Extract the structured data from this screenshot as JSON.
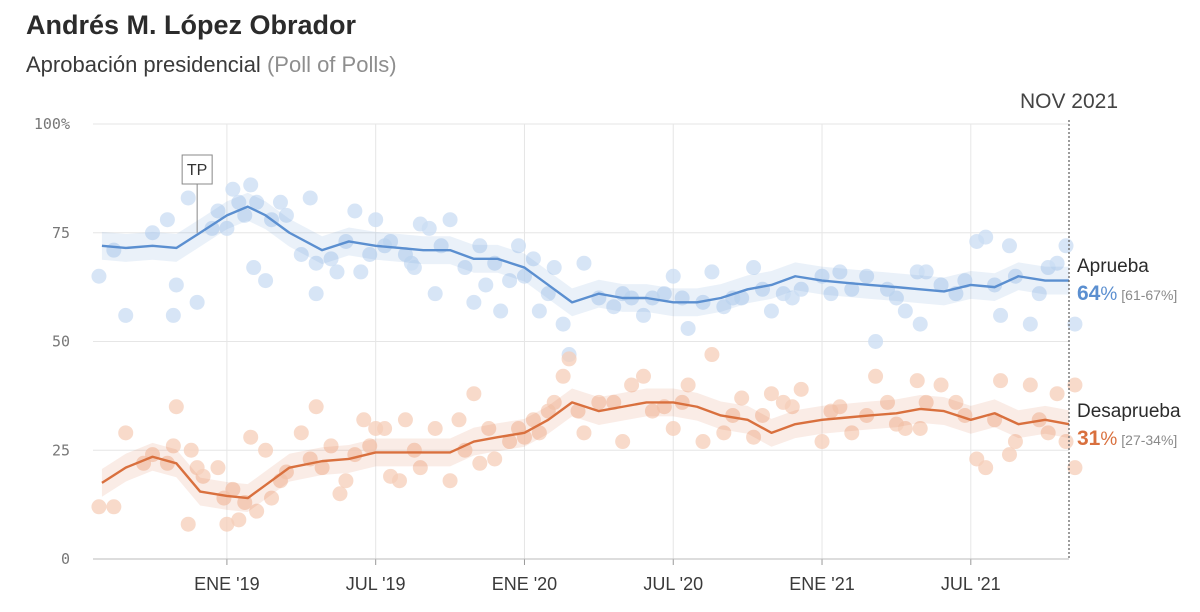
{
  "header": {
    "title": "Andrés M. López Obrador",
    "subtitle": "Aprobación presidencial",
    "subtitle_note": "(Poll of Polls)"
  },
  "colors": {
    "approve": "#5b8fd0",
    "approve_dots": "#c9dcf3",
    "disapprove": "#d9703e",
    "disapprove_dots": "#f5cdb8",
    "grid": "#e6e6e6"
  },
  "chart_data": {
    "type": "line",
    "y_ticks": [
      {
        "value": 100,
        "label": "100%"
      },
      {
        "value": 75,
        "label": "75"
      },
      {
        "value": 50,
        "label": "50"
      },
      {
        "value": 25,
        "label": "25"
      },
      {
        "value": 0,
        "label": "0"
      }
    ],
    "x_ticks": [
      {
        "value": 2019.0,
        "label": "ENE '19"
      },
      {
        "value": 2019.5,
        "label": "JUL '19"
      },
      {
        "value": 2020.0,
        "label": "ENE '20"
      },
      {
        "value": 2020.5,
        "label": "JUL '20"
      },
      {
        "value": 2021.0,
        "label": "ENE '21"
      },
      {
        "value": 2021.5,
        "label": "JUL '21"
      }
    ],
    "xlim": [
      2018.55,
      2021.83
    ],
    "ylim": [
      0,
      100
    ],
    "date_marker": {
      "value": 2021.83,
      "label": "NOV 2021"
    },
    "annotation": {
      "label": "TP",
      "x": 2018.9,
      "y": 75
    },
    "series": [
      {
        "name": "Aprueba",
        "value_label": "64",
        "pct_sign": "%",
        "range_label": "[61-67%]",
        "trend": [
          [
            2018.58,
            72
          ],
          [
            2018.66,
            71.5
          ],
          [
            2018.75,
            72
          ],
          [
            2018.83,
            71.5
          ],
          [
            2018.91,
            75
          ],
          [
            2019.0,
            79
          ],
          [
            2019.07,
            81
          ],
          [
            2019.13,
            79
          ],
          [
            2019.21,
            75
          ],
          [
            2019.32,
            71
          ],
          [
            2019.41,
            73
          ],
          [
            2019.5,
            72
          ],
          [
            2019.58,
            71.5
          ],
          [
            2019.66,
            71
          ],
          [
            2019.75,
            71
          ],
          [
            2019.83,
            69
          ],
          [
            2019.91,
            69
          ],
          [
            2020.0,
            67
          ],
          [
            2020.08,
            63
          ],
          [
            2020.16,
            59
          ],
          [
            2020.25,
            61
          ],
          [
            2020.33,
            60
          ],
          [
            2020.41,
            60
          ],
          [
            2020.5,
            59
          ],
          [
            2020.58,
            59
          ],
          [
            2020.66,
            60
          ],
          [
            2020.75,
            62
          ],
          [
            2020.83,
            63
          ],
          [
            2020.91,
            65
          ],
          [
            2021.0,
            64
          ],
          [
            2021.08,
            63.5
          ],
          [
            2021.16,
            63
          ],
          [
            2021.25,
            62.5
          ],
          [
            2021.33,
            62
          ],
          [
            2021.41,
            61.5
          ],
          [
            2021.5,
            63
          ],
          [
            2021.58,
            62.5
          ],
          [
            2021.66,
            65
          ],
          [
            2021.75,
            64
          ],
          [
            2021.83,
            64
          ]
        ],
        "points": [
          [
            2018.57,
            65
          ],
          [
            2018.62,
            71
          ],
          [
            2018.66,
            56
          ],
          [
            2018.75,
            75
          ],
          [
            2018.8,
            78
          ],
          [
            2018.82,
            56
          ],
          [
            2018.83,
            63
          ],
          [
            2018.87,
            83
          ],
          [
            2018.9,
            59
          ],
          [
            2018.95,
            76
          ],
          [
            2018.97,
            80
          ],
          [
            2019.0,
            76
          ],
          [
            2019.02,
            85
          ],
          [
            2019.04,
            82
          ],
          [
            2019.06,
            79
          ],
          [
            2019.08,
            86
          ],
          [
            2019.09,
            67
          ],
          [
            2019.1,
            82
          ],
          [
            2019.13,
            64
          ],
          [
            2019.15,
            78
          ],
          [
            2019.18,
            82
          ],
          [
            2019.2,
            79
          ],
          [
            2019.25,
            70
          ],
          [
            2019.28,
            83
          ],
          [
            2019.3,
            61
          ],
          [
            2019.3,
            68
          ],
          [
            2019.35,
            69
          ],
          [
            2019.37,
            66
          ],
          [
            2019.4,
            73
          ],
          [
            2019.43,
            80
          ],
          [
            2019.45,
            66
          ],
          [
            2019.48,
            70
          ],
          [
            2019.5,
            78
          ],
          [
            2019.53,
            72
          ],
          [
            2019.55,
            73
          ],
          [
            2019.6,
            70
          ],
          [
            2019.62,
            68
          ],
          [
            2019.63,
            67
          ],
          [
            2019.65,
            77
          ],
          [
            2019.68,
            76
          ],
          [
            2019.7,
            61
          ],
          [
            2019.72,
            72
          ],
          [
            2019.75,
            78
          ],
          [
            2019.8,
            67
          ],
          [
            2019.83,
            59
          ],
          [
            2019.85,
            72
          ],
          [
            2019.87,
            63
          ],
          [
            2019.9,
            68
          ],
          [
            2019.92,
            57
          ],
          [
            2019.95,
            64
          ],
          [
            2019.98,
            72
          ],
          [
            2020.0,
            65
          ],
          [
            2020.03,
            69
          ],
          [
            2020.05,
            57
          ],
          [
            2020.08,
            61
          ],
          [
            2020.1,
            67
          ],
          [
            2020.13,
            54
          ],
          [
            2020.15,
            47
          ],
          [
            2020.2,
            68
          ],
          [
            2020.25,
            60
          ],
          [
            2020.3,
            58
          ],
          [
            2020.33,
            61
          ],
          [
            2020.36,
            60
          ],
          [
            2020.4,
            56
          ],
          [
            2020.43,
            60
          ],
          [
            2020.47,
            61
          ],
          [
            2020.5,
            65
          ],
          [
            2020.53,
            60
          ],
          [
            2020.55,
            53
          ],
          [
            2020.6,
            59
          ],
          [
            2020.63,
            66
          ],
          [
            2020.67,
            58
          ],
          [
            2020.7,
            60
          ],
          [
            2020.73,
            60
          ],
          [
            2020.77,
            67
          ],
          [
            2020.8,
            62
          ],
          [
            2020.83,
            57
          ],
          [
            2020.87,
            61
          ],
          [
            2020.9,
            60
          ],
          [
            2020.93,
            62
          ],
          [
            2021.0,
            65
          ],
          [
            2021.03,
            61
          ],
          [
            2021.06,
            66
          ],
          [
            2021.1,
            62
          ],
          [
            2021.15,
            65
          ],
          [
            2021.18,
            50
          ],
          [
            2021.22,
            62
          ],
          [
            2021.25,
            60
          ],
          [
            2021.28,
            57
          ],
          [
            2021.32,
            66
          ],
          [
            2021.33,
            54
          ],
          [
            2021.35,
            66
          ],
          [
            2021.4,
            63
          ],
          [
            2021.45,
            61
          ],
          [
            2021.48,
            64
          ],
          [
            2021.52,
            73
          ],
          [
            2021.55,
            74
          ],
          [
            2021.58,
            63
          ],
          [
            2021.6,
            56
          ],
          [
            2021.63,
            72
          ],
          [
            2021.65,
            65
          ],
          [
            2021.7,
            54
          ],
          [
            2021.73,
            61
          ],
          [
            2021.76,
            67
          ],
          [
            2021.79,
            68
          ],
          [
            2021.82,
            72
          ],
          [
            2021.85,
            54
          ]
        ]
      },
      {
        "name": "Desaprueba",
        "value_label": "31",
        "pct_sign": "%",
        "range_label": "[27-34%]",
        "trend": [
          [
            2018.58,
            17.5
          ],
          [
            2018.66,
            21
          ],
          [
            2018.75,
            23.5
          ],
          [
            2018.83,
            22
          ],
          [
            2018.91,
            15.5
          ],
          [
            2019.0,
            14.5
          ],
          [
            2019.07,
            14
          ],
          [
            2019.13,
            17
          ],
          [
            2019.21,
            21
          ],
          [
            2019.32,
            22.5
          ],
          [
            2019.41,
            23
          ],
          [
            2019.5,
            24.5
          ],
          [
            2019.58,
            24.5
          ],
          [
            2019.66,
            24.5
          ],
          [
            2019.75,
            24.5
          ],
          [
            2019.83,
            27
          ],
          [
            2019.91,
            28
          ],
          [
            2020.0,
            29
          ],
          [
            2020.08,
            32
          ],
          [
            2020.16,
            36
          ],
          [
            2020.25,
            34
          ],
          [
            2020.33,
            35
          ],
          [
            2020.41,
            36
          ],
          [
            2020.5,
            36
          ],
          [
            2020.58,
            35
          ],
          [
            2020.66,
            33
          ],
          [
            2020.75,
            32
          ],
          [
            2020.83,
            29
          ],
          [
            2020.91,
            31
          ],
          [
            2021.0,
            32
          ],
          [
            2021.08,
            32.5
          ],
          [
            2021.16,
            33
          ],
          [
            2021.25,
            33.5
          ],
          [
            2021.33,
            34.5
          ],
          [
            2021.41,
            34
          ],
          [
            2021.5,
            32
          ],
          [
            2021.58,
            33.5
          ],
          [
            2021.66,
            31
          ],
          [
            2021.75,
            32
          ],
          [
            2021.83,
            31
          ]
        ],
        "points": [
          [
            2018.57,
            12
          ],
          [
            2018.62,
            12
          ],
          [
            2018.66,
            29
          ],
          [
            2018.72,
            22
          ],
          [
            2018.75,
            24
          ],
          [
            2018.8,
            22
          ],
          [
            2018.82,
            26
          ],
          [
            2018.83,
            35
          ],
          [
            2018.87,
            8
          ],
          [
            2018.88,
            25
          ],
          [
            2018.9,
            21
          ],
          [
            2018.92,
            19
          ],
          [
            2018.97,
            21
          ],
          [
            2018.99,
            14
          ],
          [
            2019.0,
            8
          ],
          [
            2019.02,
            16
          ],
          [
            2019.04,
            9
          ],
          [
            2019.06,
            13
          ],
          [
            2019.08,
            28
          ],
          [
            2019.1,
            11
          ],
          [
            2019.13,
            25
          ],
          [
            2019.15,
            14
          ],
          [
            2019.18,
            18
          ],
          [
            2019.2,
            20
          ],
          [
            2019.25,
            29
          ],
          [
            2019.28,
            23
          ],
          [
            2019.3,
            35
          ],
          [
            2019.32,
            21
          ],
          [
            2019.35,
            26
          ],
          [
            2019.38,
            15
          ],
          [
            2019.4,
            18
          ],
          [
            2019.43,
            24
          ],
          [
            2019.46,
            32
          ],
          [
            2019.48,
            26
          ],
          [
            2019.5,
            30
          ],
          [
            2019.53,
            30
          ],
          [
            2019.55,
            19
          ],
          [
            2019.58,
            18
          ],
          [
            2019.6,
            32
          ],
          [
            2019.63,
            25
          ],
          [
            2019.65,
            21
          ],
          [
            2019.7,
            30
          ],
          [
            2019.75,
            18
          ],
          [
            2019.78,
            32
          ],
          [
            2019.8,
            25
          ],
          [
            2019.83,
            38
          ],
          [
            2019.85,
            22
          ],
          [
            2019.88,
            30
          ],
          [
            2019.9,
            23
          ],
          [
            2019.95,
            27
          ],
          [
            2019.98,
            30
          ],
          [
            2020.0,
            28
          ],
          [
            2020.03,
            32
          ],
          [
            2020.05,
            29
          ],
          [
            2020.08,
            34
          ],
          [
            2020.1,
            36
          ],
          [
            2020.13,
            42
          ],
          [
            2020.15,
            46
          ],
          [
            2020.18,
            34
          ],
          [
            2020.2,
            29
          ],
          [
            2020.25,
            36
          ],
          [
            2020.3,
            36
          ],
          [
            2020.33,
            27
          ],
          [
            2020.36,
            40
          ],
          [
            2020.4,
            42
          ],
          [
            2020.43,
            34
          ],
          [
            2020.47,
            35
          ],
          [
            2020.5,
            30
          ],
          [
            2020.53,
            36
          ],
          [
            2020.55,
            40
          ],
          [
            2020.6,
            27
          ],
          [
            2020.63,
            47
          ],
          [
            2020.67,
            29
          ],
          [
            2020.7,
            33
          ],
          [
            2020.73,
            37
          ],
          [
            2020.77,
            28
          ],
          [
            2020.8,
            33
          ],
          [
            2020.83,
            38
          ],
          [
            2020.87,
            36
          ],
          [
            2020.9,
            35
          ],
          [
            2020.93,
            39
          ],
          [
            2021.0,
            27
          ],
          [
            2021.03,
            34
          ],
          [
            2021.06,
            35
          ],
          [
            2021.1,
            29
          ],
          [
            2021.15,
            33
          ],
          [
            2021.18,
            42
          ],
          [
            2021.22,
            36
          ],
          [
            2021.25,
            31
          ],
          [
            2021.28,
            30
          ],
          [
            2021.32,
            41
          ],
          [
            2021.33,
            30
          ],
          [
            2021.35,
            36
          ],
          [
            2021.4,
            40
          ],
          [
            2021.45,
            36
          ],
          [
            2021.48,
            33
          ],
          [
            2021.52,
            23
          ],
          [
            2021.55,
            21
          ],
          [
            2021.58,
            32
          ],
          [
            2021.6,
            41
          ],
          [
            2021.63,
            24
          ],
          [
            2021.65,
            27
          ],
          [
            2021.7,
            40
          ],
          [
            2021.73,
            32
          ],
          [
            2021.76,
            29
          ],
          [
            2021.79,
            38
          ],
          [
            2021.82,
            27
          ],
          [
            2021.85,
            40
          ],
          [
            2021.85,
            21
          ]
        ]
      }
    ]
  }
}
